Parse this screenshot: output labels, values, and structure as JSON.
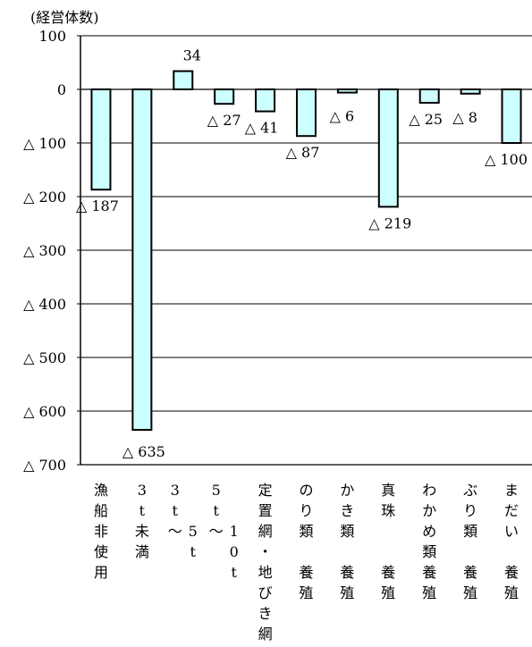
{
  "chart_data": {
    "type": "bar",
    "ylabel": "(経営体数)",
    "ylim": [
      -700,
      100
    ],
    "yticks": [
      {
        "value": 100,
        "label": "100"
      },
      {
        "value": 0,
        "label": "0"
      },
      {
        "value": -100,
        "label": "△ 100"
      },
      {
        "value": -200,
        "label": "△ 200"
      },
      {
        "value": -300,
        "label": "△ 300"
      },
      {
        "value": -400,
        "label": "△ 400"
      },
      {
        "value": -500,
        "label": "△ 500"
      },
      {
        "value": -600,
        "label": "△ 600"
      },
      {
        "value": -700,
        "label": "△ 700"
      }
    ],
    "grid": true,
    "bar_color": "#ccffff",
    "categories": [
      "漁船非使用",
      "3t未満",
      "3t〜5t",
      "5t〜10t",
      "定置網・地びき網",
      "のり類養殖",
      "かき類養殖",
      "真珠養殖",
      "わかめ類養殖",
      "ぶり類養殖",
      "まだい養殖"
    ],
    "category_label_columns": [
      [
        [
          "漁",
          "船",
          "非",
          "使",
          "用"
        ]
      ],
      [
        [
          "3",
          "t",
          "未",
          "満"
        ]
      ],
      [
        [
          "3",
          "t",
          "〜"
        ],
        [
          "",
          "",
          "5",
          "t"
        ]
      ],
      [
        [
          "5",
          "t",
          "〜"
        ],
        [
          "",
          "",
          "1",
          "0",
          "t"
        ]
      ],
      [
        [
          "定",
          "置",
          "網",
          "・",
          "地",
          "び",
          "き",
          "網"
        ]
      ],
      [
        [
          "の",
          "り",
          "類",
          "",
          "養",
          "殖"
        ]
      ],
      [
        [
          "か",
          "き",
          "類",
          "",
          "養",
          "殖"
        ]
      ],
      [
        [
          "真",
          "珠",
          "",
          "",
          "養",
          "殖"
        ]
      ],
      [
        [
          "わ",
          "か",
          "め",
          "類",
          "養",
          "殖"
        ]
      ],
      [
        [
          "ぶ",
          "り",
          "類",
          "",
          "養",
          "殖"
        ]
      ],
      [
        [
          "ま",
          "だ",
          "い",
          "",
          "養",
          "殖"
        ]
      ]
    ],
    "values": [
      -187,
      -635,
      34,
      -27,
      -41,
      -87,
      -6,
      -219,
      -25,
      -8,
      -100
    ],
    "data_labels": [
      "△ 187",
      "△ 635",
      "34",
      "△ 27",
      "△ 41",
      "△ 87",
      "△ 6",
      "△ 219",
      "△ 25",
      "△ 8",
      "△ 100"
    ]
  }
}
